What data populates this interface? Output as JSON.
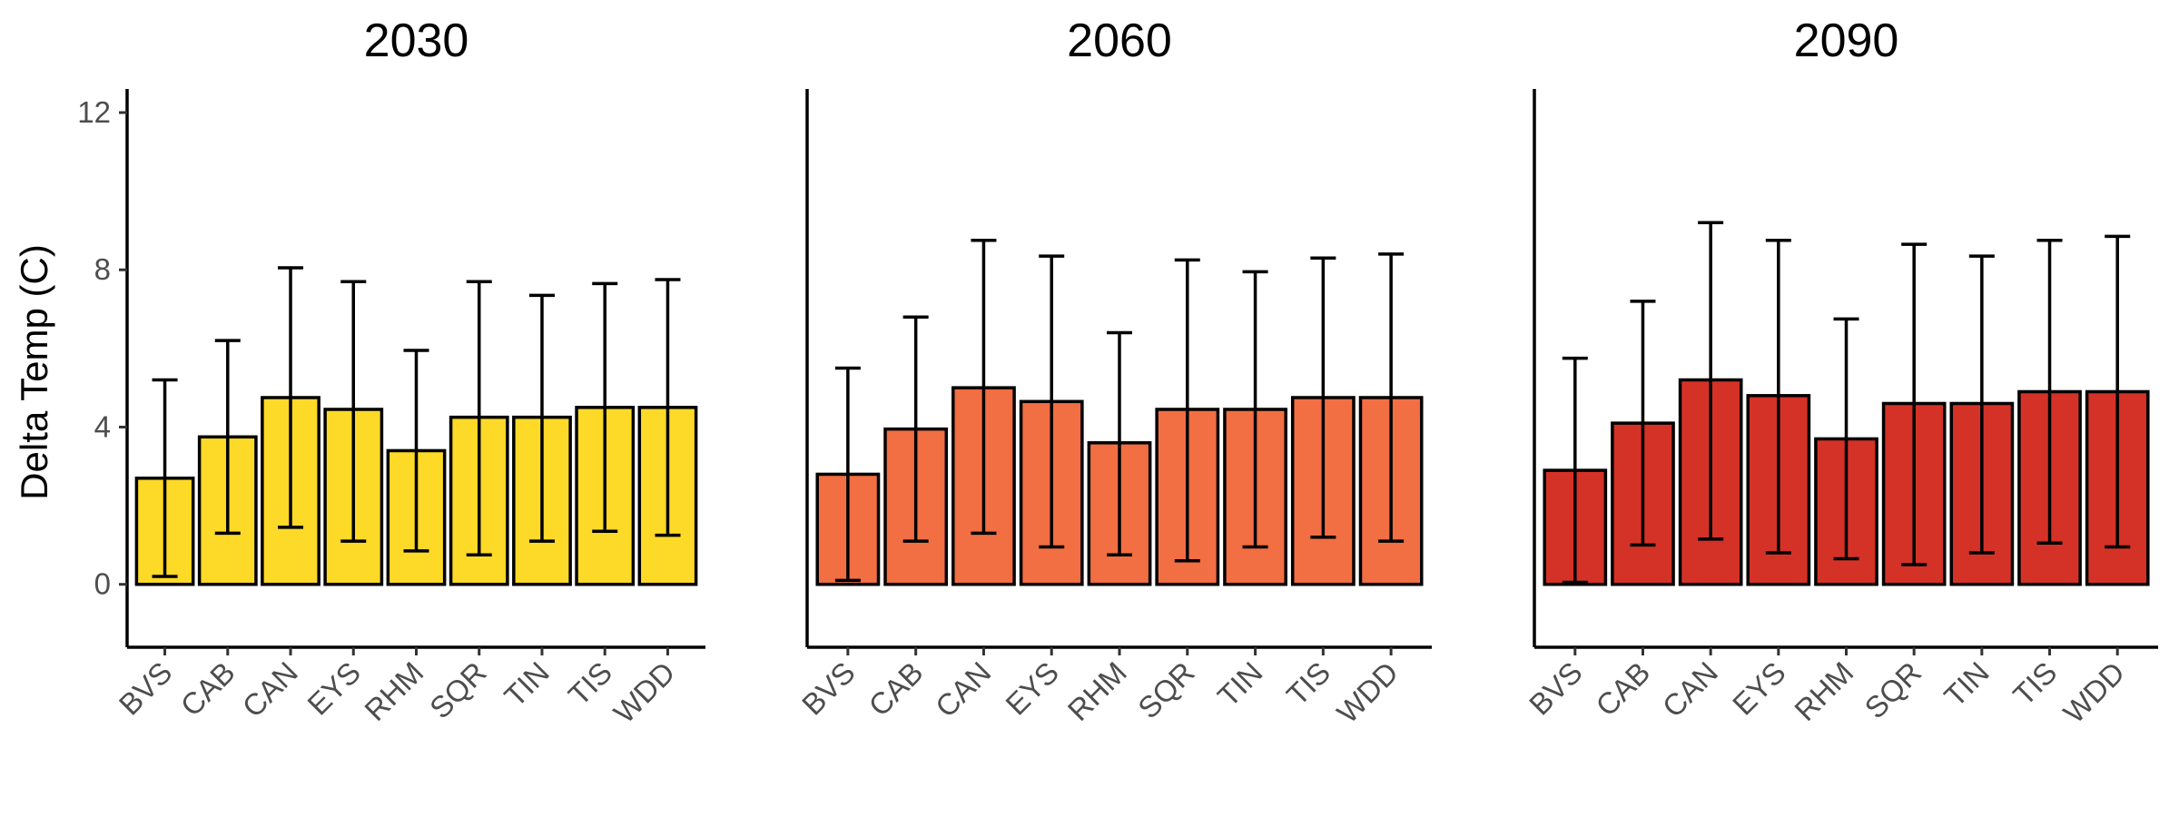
{
  "chart_data": {
    "type": "bar",
    "ylabel": "Delta Temp (C)",
    "ylim": [
      -1.6,
      12.6
    ],
    "yticks": [
      0,
      4,
      8,
      12
    ],
    "categories": [
      "BVS",
      "CAB",
      "CAN",
      "EYS",
      "RHM",
      "SQR",
      "TIN",
      "TIS",
      "WDD"
    ],
    "panels": [
      {
        "title": "2030",
        "color": "#FDD928",
        "values": [
          2.7,
          3.75,
          4.75,
          4.45,
          3.4,
          4.25,
          4.25,
          4.5,
          4.5
        ],
        "err_low": [
          0.2,
          1.3,
          1.45,
          1.1,
          0.85,
          0.75,
          1.1,
          1.35,
          1.25
        ],
        "err_high": [
          5.2,
          6.2,
          8.05,
          7.7,
          5.95,
          7.7,
          7.35,
          7.65,
          7.75
        ]
      },
      {
        "title": "2060",
        "color": "#F26E43",
        "values": [
          2.8,
          3.95,
          5.0,
          4.65,
          3.6,
          4.45,
          4.45,
          4.75,
          4.75
        ],
        "err_low": [
          0.1,
          1.1,
          1.3,
          0.95,
          0.75,
          0.6,
          0.95,
          1.2,
          1.1
        ],
        "err_high": [
          5.5,
          6.8,
          8.75,
          8.35,
          6.4,
          8.25,
          7.95,
          8.3,
          8.4
        ]
      },
      {
        "title": "2090",
        "color": "#D43227",
        "values": [
          2.9,
          4.1,
          5.2,
          4.8,
          3.7,
          4.6,
          4.6,
          4.9,
          4.9
        ],
        "err_low": [
          0.05,
          1.0,
          1.15,
          0.8,
          0.65,
          0.5,
          0.8,
          1.05,
          0.95
        ],
        "err_high": [
          5.75,
          7.2,
          9.2,
          8.75,
          6.75,
          8.65,
          8.35,
          8.75,
          8.85
        ]
      }
    ]
  }
}
